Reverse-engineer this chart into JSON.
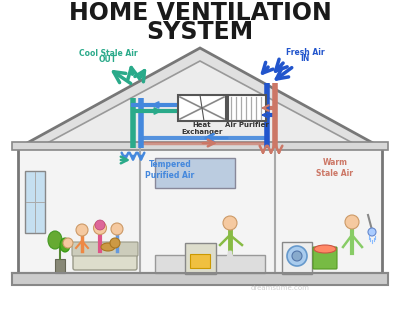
{
  "title_line1": "HOME VENTILATION",
  "title_line2": "SYSTEM",
  "title_fontsize": 17,
  "title_color": "#1a1a1a",
  "bg_color": "#ffffff",
  "cool_stale_color": "#2aaa8a",
  "fresh_air_color": "#2255cc",
  "warm_stale_color": "#cc7766",
  "tempered_color": "#4488dd",
  "label_cool_stale": "Cool Stale Air\n      OUT",
  "label_fresh_air": "Fresh Air\n    IN",
  "label_heat_ex": "Heat\nExchanger",
  "label_air_purifier": "Air Purifier",
  "label_tempered": "Tempered\nPurified Air",
  "label_warm_stale": "Warm\nStale Air",
  "watermark": "dreamstime.com"
}
